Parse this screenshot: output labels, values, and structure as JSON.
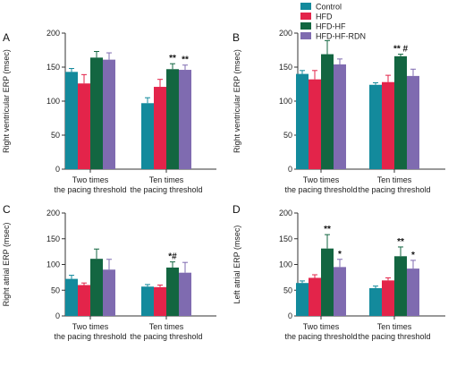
{
  "colors": {
    "Control": "#138a9c",
    "HFD": "#e3244a",
    "HFD-HF": "#136641",
    "HFD-HF-RDN": "#7f6bb0"
  },
  "legend": {
    "position": "top-center",
    "entries": [
      "Control",
      "HFD",
      "HFD-HF",
      "HFD-HF-RDN"
    ]
  },
  "chart_data": [
    {
      "panel": "A",
      "type": "bar",
      "ylabel": "Right ventricular ERP (msec)",
      "ylim": [
        0,
        200
      ],
      "yticks": [
        0,
        50,
        100,
        150,
        200
      ],
      "categories": [
        [
          "Two times",
          "the pacing threshold"
        ],
        [
          "Ten times",
          "the pacing threshold"
        ]
      ],
      "series": [
        {
          "name": "Control",
          "values": [
            143,
            97
          ],
          "errors": [
            5,
            8
          ]
        },
        {
          "name": "HFD",
          "values": [
            126,
            121
          ],
          "errors": [
            13,
            11
          ]
        },
        {
          "name": "HFD-HF",
          "values": [
            164,
            147
          ],
          "errors": [
            9,
            8
          ]
        },
        {
          "name": "HFD-HF-RDN",
          "values": [
            161,
            146
          ],
          "errors": [
            10,
            7
          ]
        }
      ],
      "annotations": [
        {
          "category": 1,
          "series": 2,
          "text": "**"
        },
        {
          "category": 1,
          "series": 3,
          "text": "**"
        }
      ]
    },
    {
      "panel": "B",
      "type": "bar",
      "ylabel": "Right ventricular ERP (msec)",
      "ylim": [
        0,
        200
      ],
      "yticks": [
        0,
        50,
        100,
        150,
        200
      ],
      "categories": [
        [
          "Two times",
          "the pacing threshold"
        ],
        [
          "Ten times",
          "the pacing threshold"
        ]
      ],
      "series": [
        {
          "name": "Control",
          "values": [
            140,
            124
          ],
          "errors": [
            5,
            3
          ]
        },
        {
          "name": "HFD",
          "values": [
            132,
            128
          ],
          "errors": [
            13,
            10
          ]
        },
        {
          "name": "HFD-HF",
          "values": [
            169,
            166
          ],
          "errors": [
            20,
            3
          ]
        },
        {
          "name": "HFD-HF-RDN",
          "values": [
            154,
            137
          ],
          "errors": [
            8,
            10
          ]
        }
      ],
      "annotations": [
        {
          "category": 1,
          "series": 2,
          "text": "** #"
        }
      ]
    },
    {
      "panel": "C",
      "type": "bar",
      "ylabel": "Right atrial ERP (msec)",
      "ylim": [
        0,
        200
      ],
      "yticks": [
        0,
        50,
        100,
        150,
        200
      ],
      "categories": [
        [
          "Two times",
          "the pacing threshold"
        ],
        [
          "Ten times",
          "the pacing threshold"
        ]
      ],
      "series": [
        {
          "name": "Control",
          "values": [
            72,
            57
          ],
          "errors": [
            7,
            4
          ]
        },
        {
          "name": "HFD",
          "values": [
            60,
            56
          ],
          "errors": [
            4,
            4
          ]
        },
        {
          "name": "HFD-HF",
          "values": [
            111,
            94
          ],
          "errors": [
            19,
            11
          ]
        },
        {
          "name": "HFD-HF-RDN",
          "values": [
            90,
            84
          ],
          "errors": [
            20,
            20
          ]
        }
      ],
      "annotations": [
        {
          "category": 1,
          "series": 2,
          "text": "*#"
        }
      ]
    },
    {
      "panel": "D",
      "type": "bar",
      "ylabel": "Left atrial ERP (msec)",
      "ylim": [
        0,
        200
      ],
      "yticks": [
        0,
        50,
        100,
        150,
        200
      ],
      "categories": [
        [
          "Two times",
          "the pacing threshold"
        ],
        [
          "Ten times",
          "the pacing threshold"
        ]
      ],
      "series": [
        {
          "name": "Control",
          "values": [
            64,
            54
          ],
          "errors": [
            4,
            4
          ]
        },
        {
          "name": "HFD",
          "values": [
            74,
            69
          ],
          "errors": [
            6,
            5
          ]
        },
        {
          "name": "HFD-HF",
          "values": [
            131,
            116
          ],
          "errors": [
            27,
            18
          ]
        },
        {
          "name": "HFD-HF-RDN",
          "values": [
            95,
            92
          ],
          "errors": [
            15,
            16
          ]
        }
      ],
      "annotations": [
        {
          "category": 0,
          "series": 2,
          "text": "**"
        },
        {
          "category": 0,
          "series": 3,
          "text": "*"
        },
        {
          "category": 1,
          "series": 2,
          "text": "**"
        },
        {
          "category": 1,
          "series": 3,
          "text": "*"
        }
      ]
    }
  ]
}
